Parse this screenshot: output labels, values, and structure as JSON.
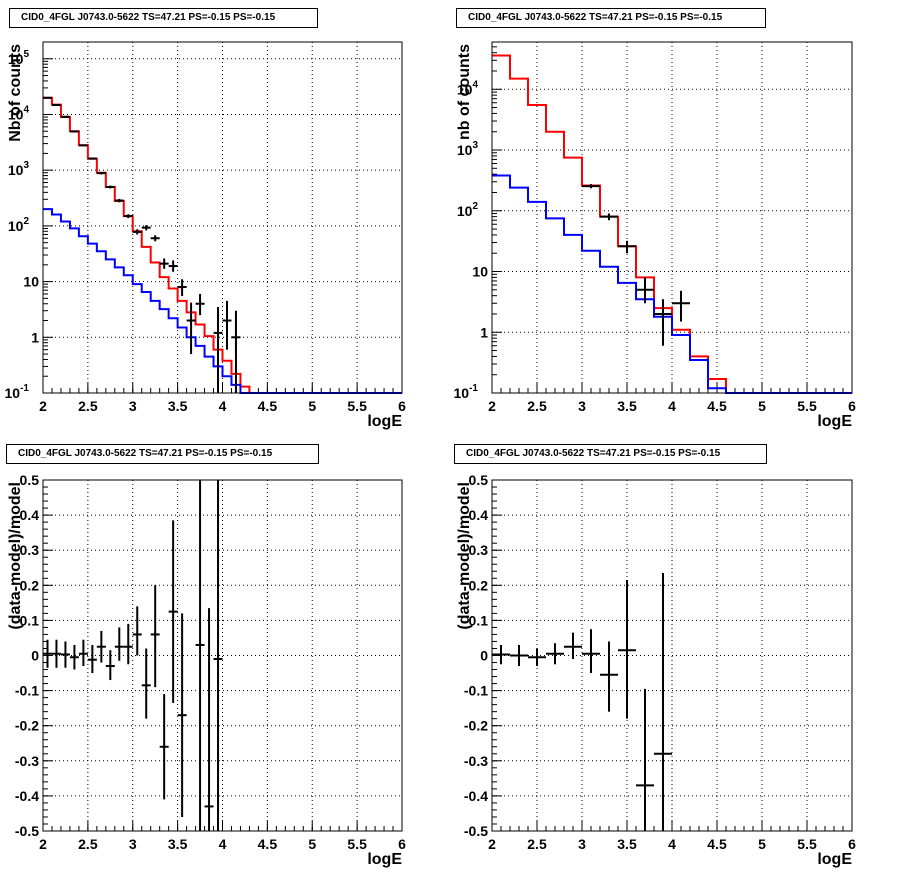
{
  "chart_data": [
    {
      "type": "line",
      "title": "CID0_4FGL J0743.0-5622 TS=47.21 PS=-0.15 PS=-0.15",
      "xlabel": "logE",
      "ylabel": "Nb of counts",
      "xlim": [
        2,
        6
      ],
      "ylim": [
        0.1,
        200000
      ],
      "yscale": "log",
      "grid": true,
      "xticks": [
        "2",
        "2.5",
        "3",
        "3.5",
        "4",
        "4.5",
        "5",
        "5.5",
        "6"
      ],
      "yticks": [
        "10^-1",
        "1",
        "10",
        "10^2",
        "10^3",
        "10^4",
        "10^5"
      ],
      "bin_edges": [
        2.0,
        2.1,
        2.2,
        2.3,
        2.4,
        2.5,
        2.6,
        2.7,
        2.8,
        2.9,
        3.0,
        3.1,
        3.2,
        3.3,
        3.4,
        3.5,
        3.6,
        3.7,
        3.8,
        3.9,
        4.0,
        4.1,
        4.2,
        4.3,
        4.4,
        4.5,
        4.6,
        4.7,
        4.8,
        4.9,
        5.0,
        5.1,
        5.2,
        5.3,
        5.4,
        5.5,
        5.6,
        5.7,
        5.8,
        5.9,
        6.0
      ],
      "series": [
        {
          "role": "model-total",
          "color": "#ff0000",
          "values": [
            20000,
            15000,
            9000,
            5000,
            2800,
            1600,
            900,
            500,
            280,
            150,
            80,
            42,
            22,
            12,
            7.5,
            4.5,
            2.8,
            1.7,
            1.05,
            0.6,
            0.38,
            0.22,
            0.13,
            0.1,
            0.1,
            0.1,
            0.1,
            0.1,
            0.1,
            0.1,
            0.1,
            0.1,
            0.1,
            0.1,
            0.1,
            0.1,
            0.1,
            0.1,
            0.1,
            0.1
          ]
        },
        {
          "role": "model-source",
          "color": "#0000ff",
          "values": [
            200,
            160,
            120,
            90,
            65,
            48,
            35,
            25,
            18,
            13,
            9,
            6.5,
            4.5,
            3.2,
            2.2,
            1.5,
            1.0,
            0.7,
            0.45,
            0.3,
            0.2,
            0.14,
            0.1,
            0.1,
            0.1,
            0.1,
            0.1,
            0.1,
            0.1,
            0.1,
            0.1,
            0.1,
            0.1,
            0.1,
            0.1,
            0.1,
            0.1,
            0.1,
            0.1,
            0.1
          ]
        }
      ],
      "data_points": {
        "color": "#000000",
        "x": [
          2.05,
          2.15,
          2.25,
          2.35,
          2.45,
          2.55,
          2.65,
          2.75,
          2.85,
          2.95,
          3.05,
          3.15,
          3.25,
          3.35,
          3.45,
          3.55,
          3.65,
          3.75,
          3.95,
          4.05,
          4.15
        ],
        "y": [
          19900,
          14800,
          9100,
          4950,
          2790,
          1620,
          885,
          500,
          285,
          150,
          78,
          93,
          60,
          21,
          19,
          8,
          2,
          4,
          1.2,
          2,
          1
        ],
        "ylo": [
          19300,
          14400,
          8800,
          4800,
          2700,
          1550,
          840,
          470,
          265,
          138,
          70,
          83,
          53,
          17,
          15,
          5.5,
          0.5,
          2.5,
          0.1,
          0.6,
          0.1
        ],
        "yhi": [
          20500,
          15200,
          9400,
          5100,
          2880,
          1690,
          930,
          530,
          305,
          162,
          87,
          103,
          68,
          26,
          24,
          11,
          4.2,
          6,
          3.5,
          4.5,
          3
        ]
      }
    },
    {
      "type": "line",
      "title": "CID0_4FGL J0743.0-5622 TS=47.21 PS=-0.15 PS=-0.15",
      "xlabel": "logE",
      "ylabel": "nb of counts",
      "xlim": [
        2,
        6
      ],
      "ylim": [
        0.1,
        60000
      ],
      "yscale": "log",
      "grid": true,
      "xticks": [
        "2",
        "2.5",
        "3",
        "3.5",
        "4",
        "4.5",
        "5",
        "5.5",
        "6"
      ],
      "yticks": [
        "10^-1",
        "1",
        "10",
        "10^2",
        "10^3",
        "10^4"
      ],
      "bin_edges": [
        2.0,
        2.2,
        2.4,
        2.6,
        2.8,
        3.0,
        3.2,
        3.4,
        3.6,
        3.8,
        4.0,
        4.2,
        4.4,
        4.6,
        4.8,
        5.0,
        5.2,
        5.4,
        5.6,
        5.8,
        6.0
      ],
      "series": [
        {
          "role": "model-total",
          "color": "#ff0000",
          "values": [
            36000,
            15000,
            5500,
            2000,
            750,
            260,
            80,
            26,
            8,
            2.5,
            1.1,
            0.4,
            0.17,
            0.1,
            0.1,
            0.1,
            0.1,
            0.1,
            0.1,
            0.1
          ]
        },
        {
          "role": "model-source",
          "color": "#0000ff",
          "values": [
            380,
            240,
            140,
            75,
            40,
            22,
            12,
            6.5,
            3.5,
            1.8,
            0.9,
            0.35,
            0.12,
            0.1,
            0.1,
            0.1,
            0.1,
            0.1,
            0.1,
            0.1
          ]
        }
      ],
      "data_points": {
        "color": "#000000",
        "x": [
          3.1,
          3.3,
          3.5,
          3.7,
          3.9,
          4.1
        ],
        "y": [
          255,
          80,
          26,
          5,
          2,
          3
        ],
        "ylo": [
          235,
          70,
          20,
          3,
          0.6,
          1.5
        ],
        "yhi": [
          275,
          90,
          32,
          8,
          3.5,
          4.8
        ]
      }
    },
    {
      "type": "scatter",
      "title": "CID0_4FGL J0743.0-5622 TS=47.21 PS=-0.15 PS=-0.15",
      "xlabel": "logE",
      "ylabel": "(data-model)/model",
      "xlim": [
        2,
        6
      ],
      "ylim": [
        -0.5,
        0.5
      ],
      "grid": true,
      "xticks": [
        "2",
        "2.5",
        "3",
        "3.5",
        "4",
        "4.5",
        "5",
        "5.5",
        "6"
      ],
      "yticks": [
        "-0.5",
        "-0.4",
        "-0.3",
        "-0.2",
        "-0.1",
        "0",
        "0.1",
        "0.2",
        "0.3",
        "0.4",
        "0.5"
      ],
      "points": {
        "color": "#000000",
        "x": [
          2.05,
          2.15,
          2.25,
          2.35,
          2.45,
          2.55,
          2.65,
          2.75,
          2.85,
          2.95,
          3.05,
          3.15,
          3.25,
          3.35,
          3.45,
          3.55,
          3.75,
          3.85,
          3.95
        ],
        "y": [
          0.005,
          0.005,
          0.003,
          -0.005,
          0.005,
          -0.012,
          0.025,
          -0.03,
          0.025,
          0.025,
          0.06,
          -0.085,
          0.06,
          -0.26,
          0.125,
          -0.17,
          0.03,
          -0.43,
          -0.01
        ],
        "ylo": [
          -0.035,
          -0.035,
          -0.035,
          -0.04,
          -0.03,
          -0.05,
          -0.02,
          -0.07,
          -0.015,
          -0.025,
          0.0,
          -0.18,
          -0.09,
          -0.41,
          -0.135,
          -0.46,
          -0.5,
          -0.5,
          -0.5
        ],
        "yhi": [
          0.045,
          0.045,
          0.04,
          0.03,
          0.045,
          0.03,
          0.07,
          0.015,
          0.08,
          0.09,
          0.14,
          0.02,
          0.2,
          -0.11,
          0.385,
          0.12,
          0.5,
          0.135,
          0.5
        ]
      }
    },
    {
      "type": "scatter",
      "title": "CID0_4FGL J0743.0-5622 TS=47.21 PS=-0.15 PS=-0.15",
      "xlabel": "logE",
      "ylabel": "(data-model)/model",
      "xlim": [
        2,
        6
      ],
      "ylim": [
        -0.5,
        0.5
      ],
      "grid": true,
      "xticks": [
        "2",
        "2.5",
        "3",
        "3.5",
        "4",
        "4.5",
        "5",
        "5.5",
        "6"
      ],
      "yticks": [
        "-0.5",
        "-0.4",
        "-0.3",
        "-0.2",
        "-0.1",
        "0",
        "0.1",
        "0.2",
        "0.3",
        "0.4",
        "0.5"
      ],
      "points": {
        "color": "#000000",
        "x": [
          2.1,
          2.3,
          2.5,
          2.7,
          2.9,
          3.1,
          3.3,
          3.5,
          3.7,
          3.9
        ],
        "y": [
          0.003,
          0.0,
          -0.005,
          0.005,
          0.025,
          0.005,
          -0.055,
          0.015,
          -0.37,
          -0.28
        ],
        "ylo": [
          -0.025,
          -0.03,
          -0.03,
          -0.025,
          -0.01,
          -0.05,
          -0.16,
          -0.18,
          -0.5,
          -0.5
        ],
        "yhi": [
          0.03,
          0.03,
          0.02,
          0.035,
          0.065,
          0.075,
          0.04,
          0.215,
          -0.095,
          0.235
        ]
      }
    }
  ]
}
